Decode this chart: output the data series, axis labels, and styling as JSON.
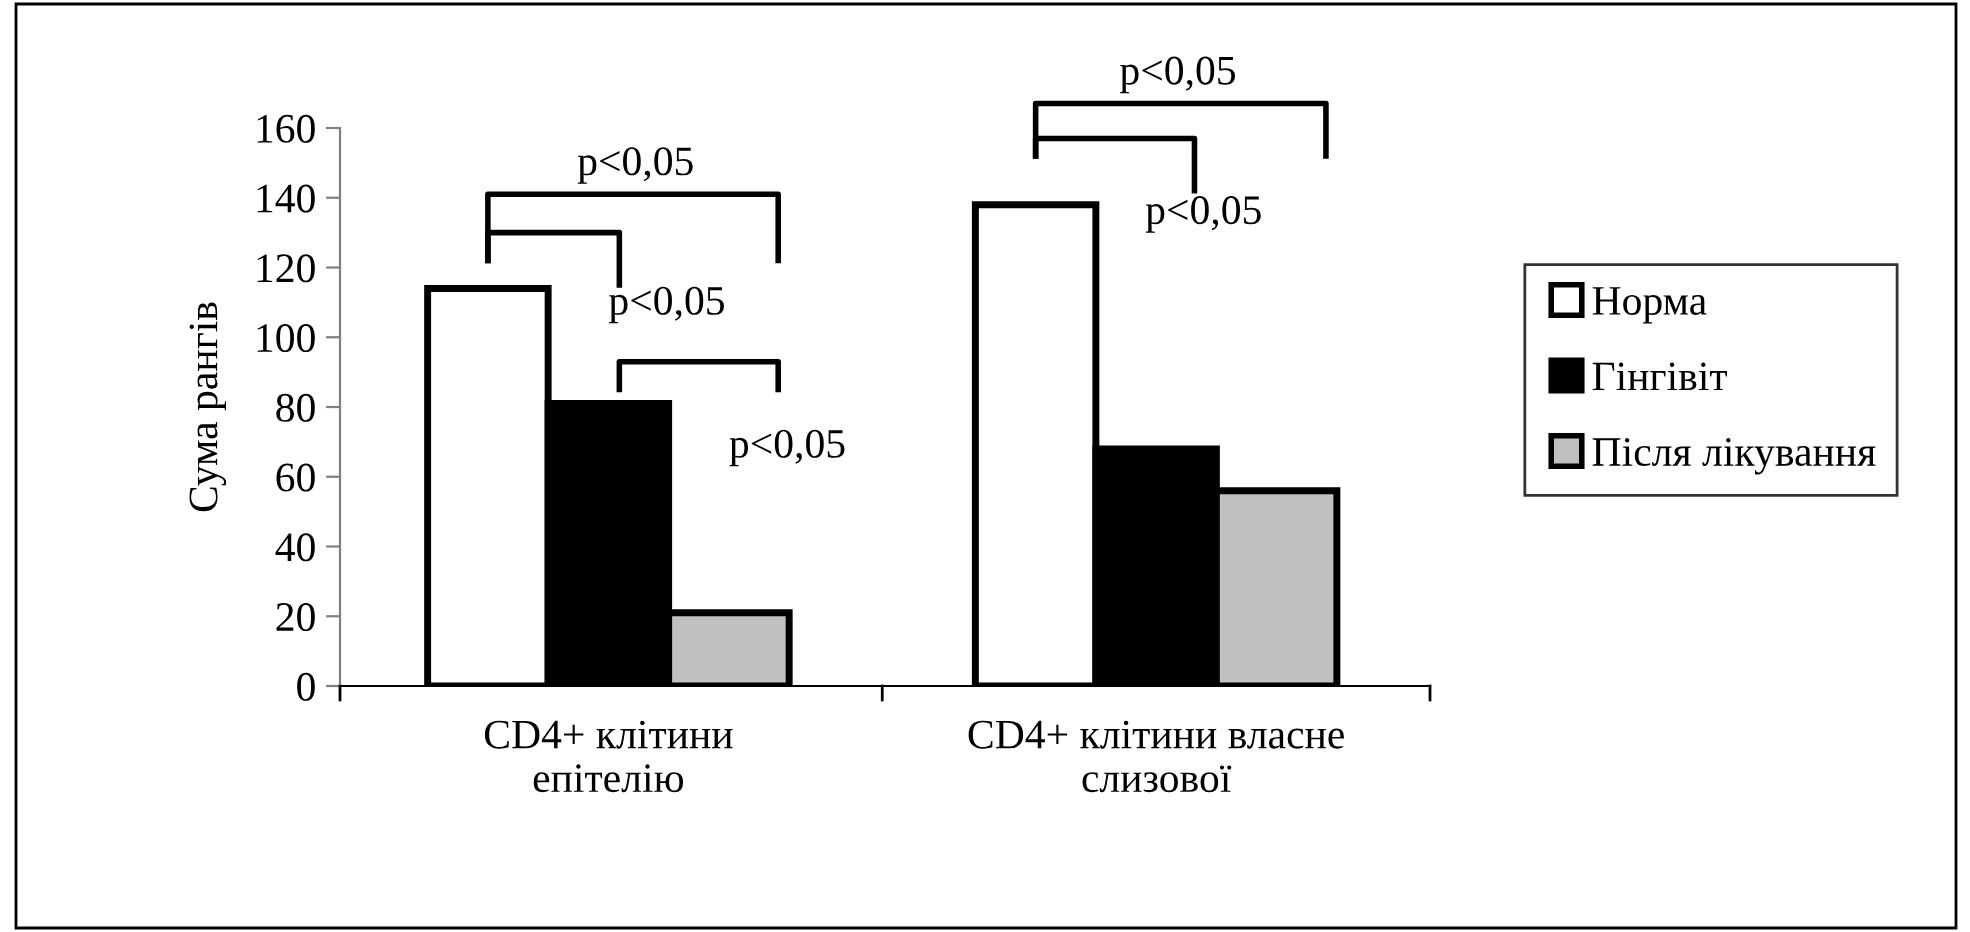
{
  "chart_data": {
    "type": "bar",
    "ylabel": "Сума рангів",
    "categories": [
      "CD4+ клітини\nепітелію",
      "CD4+ клітини власне\nслизової"
    ],
    "series": [
      {
        "name": "Норма",
        "color": "#ffffff",
        "values": [
          114,
          138
        ]
      },
      {
        "name": "Гінгівіт",
        "color": "#000000",
        "values": [
          81,
          68
        ]
      },
      {
        "name": "Після лікування",
        "color": "#c0c0c0",
        "values": [
          21,
          56
        ]
      }
    ],
    "ylim": [
      0,
      160
    ],
    "yticks": [
      0,
      20,
      40,
      60,
      80,
      100,
      120,
      140,
      160
    ],
    "annotations": [
      "p<0,05",
      "p<0,05",
      "p<0,05",
      "p<0,05",
      "p<0,05"
    ],
    "legend": "right",
    "grid": false
  }
}
